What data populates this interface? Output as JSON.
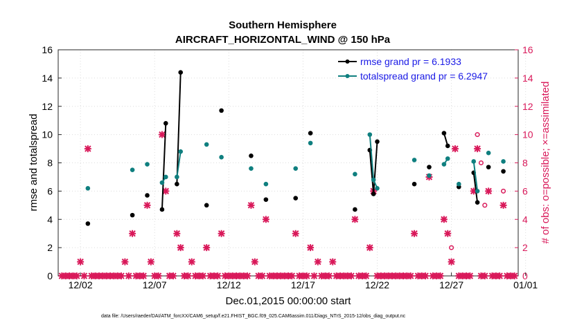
{
  "chart_data": {
    "type": "line",
    "title": "Southern Hemisphere",
    "subtitle": "AIRCRAFT_HORIZONTAL_WIND @ 150 hPa",
    "xlabel": "Dec.01,2015 00:00:00 start",
    "ylabel": "rmse and totalspread",
    "y2label": "# of obs: o=possible; ×=assimilated",
    "footnote": "data file: /Users/raeder/DAI/ATM_forcXX/CAM6_setup/f.e21.FHIST_BGC.f09_025.CAM6assim.011/Diags_NTrS_2015-12/obs_diag_output.nc",
    "xlim": [
      0.5,
      31.5
    ],
    "ylim": [
      0,
      16
    ],
    "y2lim": [
      0,
      16
    ],
    "xticks": [
      {
        "day": 2,
        "label": "12/02"
      },
      {
        "day": 7,
        "label": "12/07"
      },
      {
        "day": 12,
        "label": "12/12"
      },
      {
        "day": 17,
        "label": "12/17"
      },
      {
        "day": 22,
        "label": "12/22"
      },
      {
        "day": 27,
        "label": "12/27"
      },
      {
        "day": 32,
        "label": "01/01"
      }
    ],
    "yticks": [
      "0",
      "2",
      "4",
      "6",
      "8",
      "10",
      "12",
      "14",
      "16"
    ],
    "y2ticks": [
      "0",
      "2",
      "4",
      "6",
      "8",
      "10",
      "12",
      "14",
      "16"
    ],
    "colors": {
      "rmse": "#000000",
      "spread": "#0f7f7f",
      "obs": "#d9195a",
      "legend_text": "#1a1ae6"
    },
    "series": [
      {
        "name": "rmse grand pr = 6.1933",
        "color": "#000000",
        "points": [
          [
            2.5,
            3.7
          ],
          [
            5.5,
            4.3
          ],
          [
            6.5,
            5.7
          ],
          [
            7.5,
            4.7
          ],
          [
            7.75,
            10.8
          ],
          [
            8.5,
            6.5
          ],
          [
            8.75,
            14.4
          ],
          [
            10.5,
            5.0
          ],
          [
            11.5,
            11.7
          ],
          [
            13.5,
            8.5
          ],
          [
            14.5,
            5.4
          ],
          [
            16.5,
            5.5
          ],
          [
            17.5,
            10.1
          ],
          [
            20.5,
            4.7
          ],
          [
            21.5,
            8.9
          ],
          [
            21.75,
            5.8
          ],
          [
            22,
            9.5
          ],
          [
            24.5,
            6.5
          ],
          [
            25.5,
            7.7
          ],
          [
            26.5,
            10.1
          ],
          [
            26.75,
            9.2
          ],
          [
            27.5,
            6.3
          ],
          [
            28.5,
            7.3
          ],
          [
            28.75,
            5.2
          ],
          [
            29.5,
            7.7
          ],
          [
            30.5,
            7.4
          ]
        ],
        "segments": [
          [
            3,
            4
          ],
          [
            5,
            6
          ],
          [
            14,
            15
          ],
          [
            15,
            16
          ],
          [
            19,
            20
          ],
          [
            22,
            23
          ]
        ]
      },
      {
        "name": "totalspread grand pr = 6.2947",
        "color": "#0f7f7f",
        "points": [
          [
            2.5,
            6.2
          ],
          [
            5.5,
            7.5
          ],
          [
            6.5,
            7.9
          ],
          [
            7.5,
            6.6
          ],
          [
            7.75,
            7.0
          ],
          [
            8.5,
            7.0
          ],
          [
            8.75,
            8.8
          ],
          [
            10.5,
            9.3
          ],
          [
            11.5,
            8.4
          ],
          [
            13.5,
            7.6
          ],
          [
            14.5,
            6.5
          ],
          [
            16.5,
            7.6
          ],
          [
            17.5,
            9.4
          ],
          [
            20.5,
            7.2
          ],
          [
            21.5,
            10.0
          ],
          [
            21.75,
            6.8
          ],
          [
            22,
            6.2
          ],
          [
            24.5,
            8.2
          ],
          [
            25.5,
            7.1
          ],
          [
            26.5,
            7.9
          ],
          [
            26.75,
            8.3
          ],
          [
            27.5,
            6.5
          ],
          [
            28.5,
            8.1
          ],
          [
            28.75,
            6.0
          ],
          [
            29.5,
            8.7
          ],
          [
            30.5,
            8.1
          ]
        ],
        "segments": [
          [
            3,
            4
          ],
          [
            5,
            6
          ],
          [
            14,
            15
          ],
          [
            15,
            16
          ],
          [
            19,
            20
          ],
          [
            22,
            23
          ]
        ]
      }
    ],
    "obs_assimilated": [
      [
        0.75,
        0
      ],
      [
        1,
        0
      ],
      [
        1.25,
        0
      ],
      [
        1.5,
        0
      ],
      [
        1.75,
        0
      ],
      [
        2,
        1
      ],
      [
        2.25,
        0
      ],
      [
        2.5,
        9
      ],
      [
        2.75,
        0
      ],
      [
        3,
        0
      ],
      [
        3.25,
        0
      ],
      [
        3.5,
        0
      ],
      [
        3.75,
        0
      ],
      [
        4,
        0
      ],
      [
        4.25,
        0
      ],
      [
        4.5,
        0
      ],
      [
        4.75,
        0
      ],
      [
        5,
        1
      ],
      [
        5.25,
        0
      ],
      [
        5.5,
        3
      ],
      [
        5.75,
        0
      ],
      [
        6,
        0
      ],
      [
        6.25,
        0
      ],
      [
        6.5,
        5
      ],
      [
        6.75,
        1
      ],
      [
        7,
        0
      ],
      [
        7.25,
        0
      ],
      [
        7.5,
        10
      ],
      [
        7.75,
        6
      ],
      [
        8,
        0
      ],
      [
        8.25,
        0
      ],
      [
        8.5,
        3
      ],
      [
        8.75,
        2
      ],
      [
        9,
        0
      ],
      [
        9.25,
        0
      ],
      [
        9.5,
        1
      ],
      [
        9.75,
        0
      ],
      [
        10,
        0
      ],
      [
        10.25,
        0
      ],
      [
        10.5,
        2
      ],
      [
        10.75,
        0
      ],
      [
        11,
        0
      ],
      [
        11.25,
        0
      ],
      [
        11.5,
        3
      ],
      [
        11.75,
        0
      ],
      [
        12,
        0
      ],
      [
        12.25,
        0
      ],
      [
        12.5,
        0
      ],
      [
        12.75,
        0
      ],
      [
        13,
        0
      ],
      [
        13.25,
        0
      ],
      [
        13.5,
        5
      ],
      [
        13.75,
        1
      ],
      [
        14,
        0
      ],
      [
        14.25,
        0
      ],
      [
        14.5,
        4
      ],
      [
        14.75,
        0
      ],
      [
        15,
        0
      ],
      [
        15.25,
        0
      ],
      [
        15.5,
        0
      ],
      [
        15.75,
        0
      ],
      [
        16,
        0
      ],
      [
        16.25,
        0
      ],
      [
        16.5,
        3
      ],
      [
        16.75,
        0
      ],
      [
        17,
        0
      ],
      [
        17.25,
        0
      ],
      [
        17.5,
        2
      ],
      [
        17.75,
        0
      ],
      [
        18,
        1
      ],
      [
        18.25,
        0
      ],
      [
        18.5,
        0
      ],
      [
        18.75,
        0
      ],
      [
        19,
        1
      ],
      [
        19.25,
        0
      ],
      [
        19.5,
        0
      ],
      [
        19.75,
        0
      ],
      [
        20,
        0
      ],
      [
        20.25,
        0
      ],
      [
        20.5,
        4
      ],
      [
        20.75,
        0
      ],
      [
        21,
        0
      ],
      [
        21.25,
        0
      ],
      [
        21.5,
        2
      ],
      [
        21.75,
        6
      ],
      [
        22,
        0
      ],
      [
        22.25,
        0
      ],
      [
        22.5,
        0
      ],
      [
        22.75,
        0
      ],
      [
        23,
        0
      ],
      [
        23.25,
        0
      ],
      [
        23.5,
        0
      ],
      [
        23.75,
        0
      ],
      [
        24,
        0
      ],
      [
        24.25,
        0
      ],
      [
        24.5,
        3
      ],
      [
        24.75,
        0
      ],
      [
        25,
        0
      ],
      [
        25.25,
        0
      ],
      [
        25.5,
        7
      ],
      [
        25.75,
        0
      ],
      [
        26,
        0
      ],
      [
        26.25,
        0
      ],
      [
        26.5,
        4
      ],
      [
        26.75,
        3
      ],
      [
        27,
        1
      ],
      [
        27.25,
        9
      ],
      [
        27.5,
        0
      ],
      [
        27.75,
        0
      ],
      [
        28,
        0
      ],
      [
        28.25,
        0
      ],
      [
        28.5,
        6
      ],
      [
        28.75,
        9
      ],
      [
        29,
        0
      ],
      [
        29.25,
        0
      ],
      [
        29.5,
        6
      ],
      [
        29.75,
        0
      ],
      [
        30,
        0
      ],
      [
        30.25,
        0
      ],
      [
        30.5,
        5
      ],
      [
        30.75,
        0
      ],
      [
        31,
        0
      ],
      [
        31.25,
        0
      ]
    ],
    "obs_possible": [
      [
        27,
        2
      ],
      [
        28.75,
        10
      ],
      [
        29,
        8
      ],
      [
        29.25,
        5
      ],
      [
        30.5,
        6
      ]
    ]
  }
}
